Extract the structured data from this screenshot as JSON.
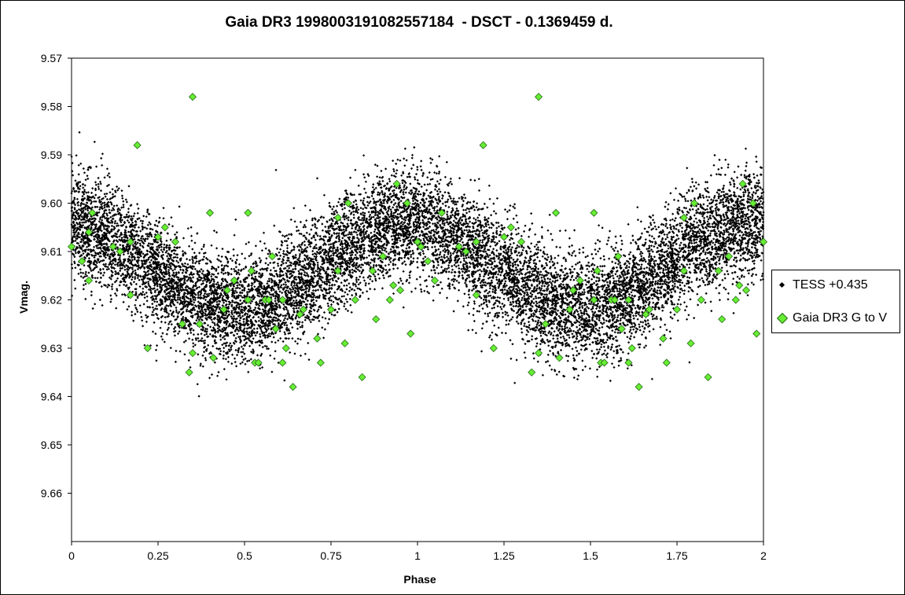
{
  "chart_data": {
    "type": "scatter",
    "title": "Gaia DR3 1998003191082557184  - DSCT - 0.1369459 d.",
    "xlabel": "Phase",
    "ylabel": "Vmag.",
    "xlim": [
      0,
      2
    ],
    "ylim": [
      9.57,
      9.67
    ],
    "y_inverted": true,
    "x_ticks": [
      "0",
      "0.25",
      "0.5",
      "0.75",
      "1",
      "1.25",
      "1.5",
      "1.75",
      "2"
    ],
    "y_ticks": [
      "9.57",
      "9.58",
      "9.59",
      "9.60",
      "9.61",
      "9.62",
      "9.63",
      "9.64",
      "9.65",
      "9.66"
    ],
    "grid": false,
    "legend_position": "right",
    "series": [
      {
        "name": "TESS +0.435",
        "marker": "small black diamond",
        "color": "#000000",
        "model": {
          "description": "dense sinusoidal band, mean 9.613, half-amplitude 0.009, scatter ~0.006, max brightness near phase 0.0/1.0/2.0",
          "mean": 9.613,
          "amplitude": 0.009,
          "period_phase": 1.0,
          "peak_phase": 0.97,
          "scatter_sd": 0.0055,
          "n_points": 16000
        }
      },
      {
        "name": "Gaia DR3 G to V",
        "marker": "green diamond",
        "color": "#66ee33",
        "points": [
          [
            0.0,
            9.609
          ],
          [
            0.03,
            9.612
          ],
          [
            0.05,
            9.606
          ],
          [
            0.06,
            9.602
          ],
          [
            0.05,
            9.616
          ],
          [
            0.12,
            9.609
          ],
          [
            0.14,
            9.61
          ],
          [
            0.17,
            9.608
          ],
          [
            0.17,
            9.619
          ],
          [
            0.19,
            9.588
          ],
          [
            0.22,
            9.63
          ],
          [
            0.25,
            9.607
          ],
          [
            0.27,
            9.605
          ],
          [
            0.3,
            9.608
          ],
          [
            0.32,
            9.625
          ],
          [
            0.34,
            9.635
          ],
          [
            0.35,
            9.578
          ],
          [
            0.35,
            9.631
          ],
          [
            0.37,
            9.625
          ],
          [
            0.4,
            9.602
          ],
          [
            0.41,
            9.632
          ],
          [
            0.44,
            9.622
          ],
          [
            0.45,
            9.618
          ],
          [
            0.47,
            9.616
          ],
          [
            0.51,
            9.602
          ],
          [
            0.51,
            9.62
          ],
          [
            0.52,
            9.614
          ],
          [
            0.53,
            9.633
          ],
          [
            0.54,
            9.633
          ],
          [
            0.56,
            9.62
          ],
          [
            0.57,
            9.62
          ],
          [
            0.58,
            9.611
          ],
          [
            0.59,
            9.626
          ],
          [
            0.61,
            9.62
          ],
          [
            0.61,
            9.633
          ],
          [
            0.62,
            9.63
          ],
          [
            0.64,
            9.638
          ],
          [
            0.66,
            9.623
          ],
          [
            0.67,
            9.622
          ],
          [
            0.71,
            9.628
          ],
          [
            0.72,
            9.633
          ],
          [
            0.75,
            9.622
          ],
          [
            0.77,
            9.603
          ],
          [
            0.77,
            9.614
          ],
          [
            0.79,
            9.629
          ],
          [
            0.8,
            9.6
          ],
          [
            0.82,
            9.62
          ],
          [
            0.84,
            9.636
          ],
          [
            0.87,
            9.614
          ],
          [
            0.88,
            9.624
          ],
          [
            0.9,
            9.611
          ],
          [
            0.92,
            9.62
          ],
          [
            0.93,
            9.617
          ],
          [
            0.94,
            9.596
          ],
          [
            0.95,
            9.618
          ],
          [
            0.97,
            9.6
          ],
          [
            0.98,
            9.627
          ],
          [
            1.0,
            9.608
          ],
          [
            1.01,
            9.609
          ],
          [
            1.03,
            9.612
          ],
          [
            1.05,
            9.616
          ],
          [
            1.07,
            9.602
          ],
          [
            1.12,
            9.609
          ],
          [
            1.14,
            9.61
          ],
          [
            1.17,
            9.608
          ],
          [
            1.17,
            9.619
          ],
          [
            1.19,
            9.588
          ],
          [
            1.22,
            9.63
          ],
          [
            1.25,
            9.607
          ],
          [
            1.27,
            9.605
          ],
          [
            1.3,
            9.608
          ],
          [
            1.33,
            9.635
          ],
          [
            1.35,
            9.578
          ],
          [
            1.35,
            9.631
          ],
          [
            1.37,
            9.625
          ],
          [
            1.4,
            9.602
          ],
          [
            1.41,
            9.632
          ],
          [
            1.44,
            9.622
          ],
          [
            1.45,
            9.618
          ],
          [
            1.47,
            9.616
          ],
          [
            1.51,
            9.602
          ],
          [
            1.51,
            9.62
          ],
          [
            1.52,
            9.614
          ],
          [
            1.53,
            9.633
          ],
          [
            1.54,
            9.633
          ],
          [
            1.56,
            9.62
          ],
          [
            1.57,
            9.62
          ],
          [
            1.58,
            9.611
          ],
          [
            1.59,
            9.626
          ],
          [
            1.61,
            9.62
          ],
          [
            1.61,
            9.633
          ],
          [
            1.62,
            9.63
          ],
          [
            1.64,
            9.638
          ],
          [
            1.66,
            9.623
          ],
          [
            1.67,
            9.622
          ],
          [
            1.71,
            9.628
          ],
          [
            1.72,
            9.633
          ],
          [
            1.75,
            9.622
          ],
          [
            1.77,
            9.603
          ],
          [
            1.77,
            9.614
          ],
          [
            1.79,
            9.629
          ],
          [
            1.8,
            9.6
          ],
          [
            1.82,
            9.62
          ],
          [
            1.84,
            9.636
          ],
          [
            1.87,
            9.614
          ],
          [
            1.88,
            9.624
          ],
          [
            1.9,
            9.611
          ],
          [
            1.92,
            9.62
          ],
          [
            1.93,
            9.617
          ],
          [
            1.94,
            9.596
          ],
          [
            1.95,
            9.618
          ],
          [
            1.97,
            9.6
          ],
          [
            1.98,
            9.627
          ],
          [
            2.0,
            9.608
          ]
        ]
      }
    ]
  }
}
